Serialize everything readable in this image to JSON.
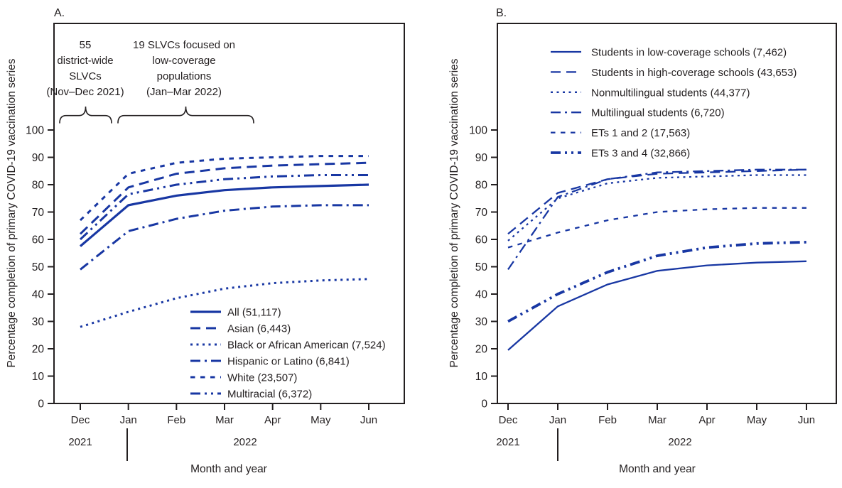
{
  "style": {
    "line_color": "#1837a3",
    "axis_color": "#231f20",
    "background": "#ffffff"
  },
  "chart_data": [
    {
      "type": "line",
      "panel_label": "A.",
      "xlabel": "Month and year",
      "ylabel": "Percentage completion of primary COVID-19 vaccination series",
      "x_categories": [
        "Dec",
        "Jan",
        "Feb",
        "Mar",
        "Apr",
        "May",
        "Jun"
      ],
      "x_year_groups": [
        {
          "label": "2021",
          "months": [
            "Dec"
          ]
        },
        {
          "label": "2022",
          "months": [
            "Jan",
            "Feb",
            "Mar",
            "Apr",
            "May",
            "Jun"
          ]
        }
      ],
      "ylim": [
        0,
        100
      ],
      "y_ticks": [
        0,
        10,
        20,
        30,
        40,
        50,
        60,
        70,
        80,
        90,
        100
      ],
      "grid": false,
      "legend_position": "inside lower right",
      "annotations": [
        {
          "lines": [
            "55",
            "district-wide",
            "SLVCs",
            "(Nov–Dec 2021)"
          ],
          "span_months": [
            "Dec"
          ]
        },
        {
          "lines": [
            "19 SLVCs focused on",
            "low-coverage",
            "populations",
            "(Jan–Mar 2022)"
          ],
          "span_months": [
            "Jan",
            "Feb",
            "Mar"
          ]
        }
      ],
      "series": [
        {
          "name": "all",
          "label": "All (51,117)",
          "pattern": "solid",
          "stroke_width": 3.2,
          "values": [
            57.5,
            72.5,
            76,
            78,
            79,
            79.5,
            80
          ]
        },
        {
          "name": "asian",
          "label": "Asian (6,443)",
          "pattern": "longdash",
          "stroke_width": 3,
          "values": [
            62,
            79,
            84,
            86,
            87,
            87.5,
            88
          ]
        },
        {
          "name": "black-or-african-american",
          "label": "Black or African American (7,524)",
          "pattern": "dot",
          "stroke_width": 3,
          "values": [
            28,
            33.5,
            38.5,
            42,
            44,
            45,
            45.5
          ]
        },
        {
          "name": "hispanic-or-latino",
          "label": "Hispanic or Latino (6,841)",
          "pattern": "dashdot",
          "stroke_width": 3,
          "values": [
            49,
            63,
            67.5,
            70.5,
            72,
            72.5,
            72.5
          ]
        },
        {
          "name": "white",
          "label": "White (23,507)",
          "pattern": "shortdash",
          "stroke_width": 3,
          "values": [
            67,
            84,
            88,
            89.5,
            90,
            90.5,
            90.5
          ]
        },
        {
          "name": "multiracial",
          "label": "Multiracial (6,372)",
          "pattern": "dashdotdot",
          "stroke_width": 3,
          "values": [
            60,
            76.5,
            80,
            82,
            83,
            83.5,
            83.5
          ]
        }
      ]
    },
    {
      "type": "line",
      "panel_label": "B.",
      "xlabel": "Month and year",
      "ylabel": "Percentage completion of primary COVID-19 vaccination series",
      "x_categories": [
        "Dec",
        "Jan",
        "Feb",
        "Mar",
        "Apr",
        "May",
        "Jun"
      ],
      "x_year_groups": [
        {
          "label": "2021",
          "months": [
            "Dec"
          ]
        },
        {
          "label": "2022",
          "months": [
            "Jan",
            "Feb",
            "Mar",
            "Apr",
            "May",
            "Jun"
          ]
        }
      ],
      "ylim": [
        0,
        100
      ],
      "y_ticks": [
        0,
        10,
        20,
        30,
        40,
        50,
        60,
        70,
        80,
        90,
        100
      ],
      "grid": false,
      "legend_position": "inside upper right",
      "annotations": [],
      "series": [
        {
          "name": "students-low-coverage-schools",
          "label": "Students in low-coverage schools (7,462)",
          "pattern": "solid",
          "stroke_width": 2.3,
          "values": [
            19.5,
            35.5,
            43.5,
            48.5,
            50.5,
            51.5,
            52
          ]
        },
        {
          "name": "students-high-coverage-schools",
          "label": "Students in high-coverage schools (43,653)",
          "pattern": "longdash",
          "stroke_width": 2.3,
          "values": [
            62,
            77,
            82,
            84,
            84.5,
            85,
            85.5
          ]
        },
        {
          "name": "nonmultilingual-students",
          "label": "Nonmultilingual students (44,377)",
          "pattern": "dot",
          "stroke_width": 2.3,
          "values": [
            59.5,
            75,
            80.5,
            82.5,
            83,
            83.5,
            83.5
          ]
        },
        {
          "name": "multilingual-students",
          "label": "Multilingual students (6,720)",
          "pattern": "dashdot",
          "stroke_width": 2.3,
          "values": [
            49,
            75.5,
            82,
            84.5,
            85,
            85.5,
            85.5
          ]
        },
        {
          "name": "ets-1-and-2",
          "label": "ETs 1 and 2 (17,563)",
          "pattern": "shortdash",
          "stroke_width": 2.3,
          "values": [
            57,
            62.5,
            67,
            70,
            71,
            71.5,
            71.5
          ]
        },
        {
          "name": "ets-3-and-4",
          "label": "ETs 3 and 4 (32,866)",
          "pattern": "dashdotdot",
          "stroke_width": 3.8,
          "values": [
            30,
            40,
            48,
            54,
            57,
            58.5,
            59
          ]
        }
      ]
    }
  ]
}
